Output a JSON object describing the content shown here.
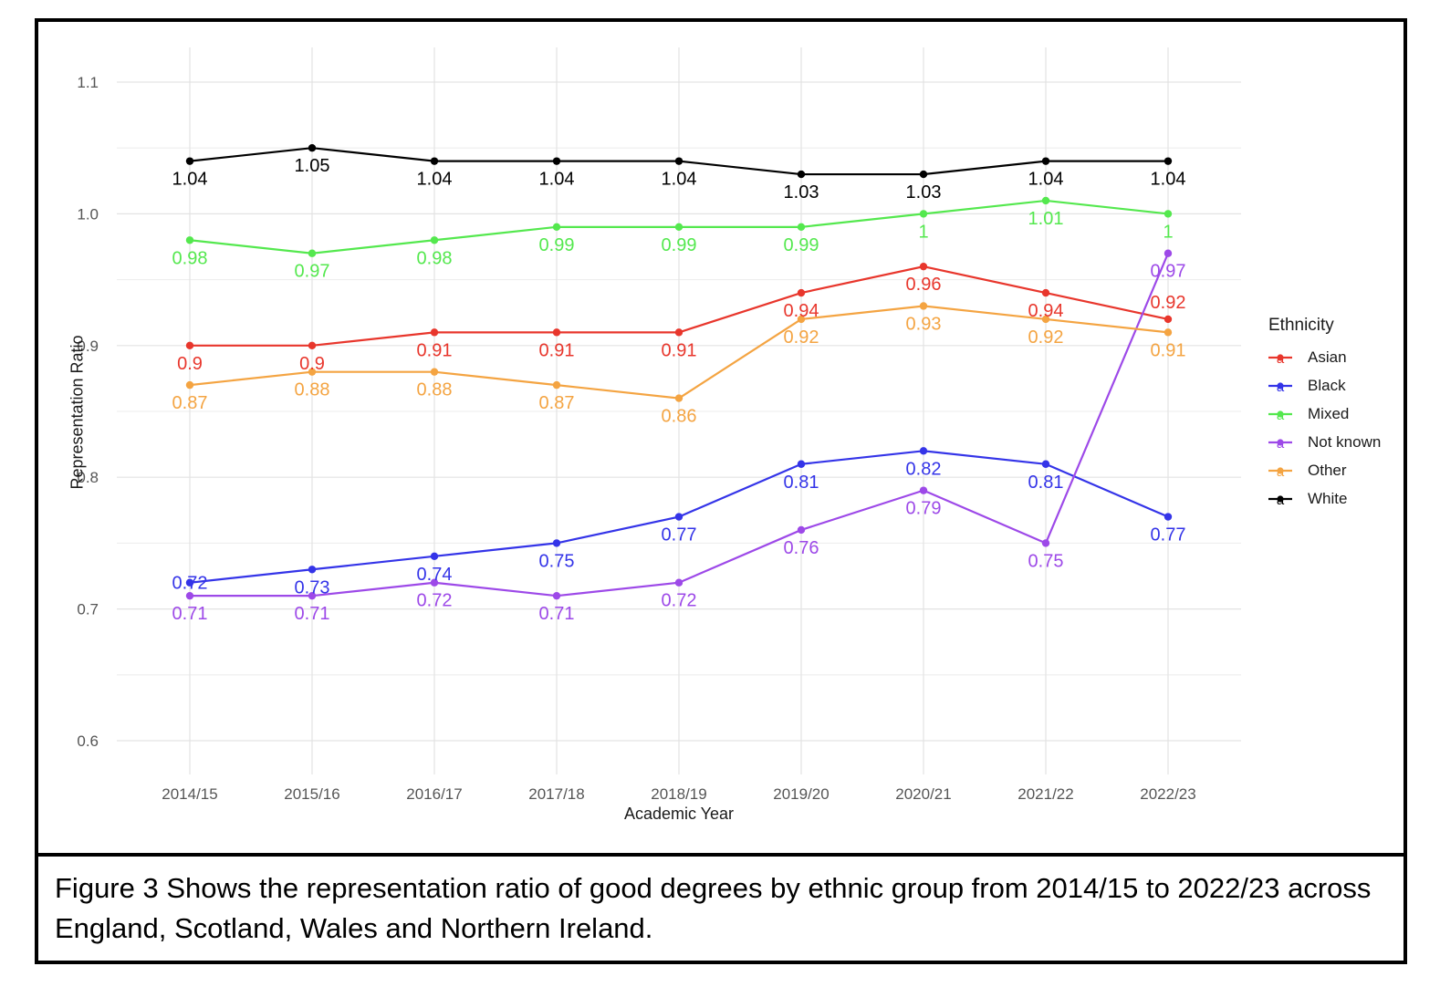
{
  "figure": {
    "caption": "Figure 3 Shows the representation ratio of good degrees by ethnic group from 2014/15 to 2022/23 across England, Scotland, Wales and Northern Ireland."
  },
  "chart_data": {
    "type": "line",
    "title": "",
    "xlabel": "Academic Year",
    "ylabel": "Representation Ratio",
    "categories": [
      "2014/15",
      "2015/16",
      "2016/17",
      "2017/18",
      "2018/19",
      "2019/20",
      "2020/21",
      "2021/22",
      "2022/23"
    ],
    "ylim": [
      0.6,
      1.1
    ],
    "y_ticks": [
      0.6,
      0.7,
      0.8,
      0.9,
      1.0,
      1.1
    ],
    "y_tick_labels": [
      "0.6",
      "0.7",
      "0.8",
      "0.9",
      "1.0",
      "1.1"
    ],
    "y_minor_ticks": [
      0.65,
      0.75,
      0.85,
      0.95,
      1.05
    ],
    "grid": true,
    "point_labels_shown": true,
    "legend_title": "Ethnicity",
    "legend_position": "right",
    "colors": {
      "grid_major": "#e3e3e3",
      "grid_minor": "#eeeeee",
      "axis_text": "#555555",
      "axis_title": "#1a1a1a"
    },
    "series": [
      {
        "name": "Asian",
        "color": "#e8362c",
        "values": [
          0.9,
          0.9,
          0.91,
          0.91,
          0.91,
          0.94,
          0.96,
          0.94,
          0.92
        ]
      },
      {
        "name": "Black",
        "color": "#3434e8",
        "values": [
          0.72,
          0.73,
          0.74,
          0.75,
          0.77,
          0.81,
          0.82,
          0.81,
          0.77
        ]
      },
      {
        "name": "Mixed",
        "color": "#54e84e",
        "values": [
          0.98,
          0.97,
          0.98,
          0.99,
          0.99,
          0.99,
          1,
          1.01,
          1
        ]
      },
      {
        "name": "Not known",
        "color": "#9d49e8",
        "values": [
          0.71,
          0.71,
          0.72,
          0.71,
          0.72,
          0.76,
          0.79,
          0.75,
          0.97
        ]
      },
      {
        "name": "Other",
        "color": "#f4a442",
        "values": [
          0.87,
          0.88,
          0.88,
          0.87,
          0.86,
          0.92,
          0.93,
          0.92,
          0.91
        ]
      },
      {
        "name": "White",
        "color": "#000000",
        "values": [
          1.04,
          1.05,
          1.04,
          1.04,
          1.04,
          1.03,
          1.03,
          1.04,
          1.04
        ]
      }
    ]
  }
}
